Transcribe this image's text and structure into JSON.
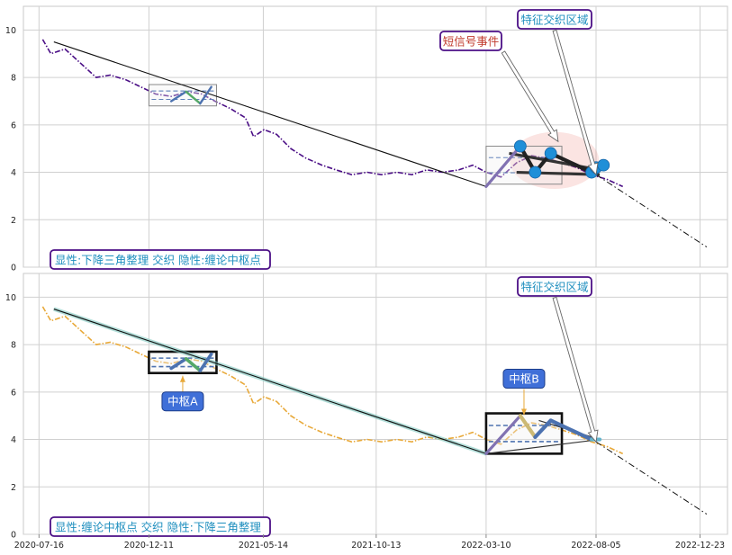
{
  "chart_data": [
    {
      "type": "line",
      "panel": "top",
      "ylim": [
        0,
        11
      ],
      "yticks": [
        "0",
        "2",
        "4",
        "6",
        "8",
        "10"
      ],
      "grid": true,
      "series": [
        {
          "style": "dash-dot",
          "color": "#4b0f86",
          "points": [
            [
              "2020-07-21",
              9.6
            ],
            [
              "2020-08-01",
              9.0
            ],
            [
              "2020-08-20",
              9.2
            ],
            [
              "2020-09-10",
              8.6
            ],
            [
              "2020-10-01",
              8.0
            ],
            [
              "2020-10-20",
              8.1
            ],
            [
              "2020-11-10",
              7.9
            ],
            [
              "2020-11-30",
              7.6
            ],
            [
              "2020-12-20",
              7.3
            ],
            [
              "2021-01-10",
              7.2
            ],
            [
              "2021-02-01",
              7.4
            ],
            [
              "2021-02-20",
              7.3
            ],
            [
              "2021-03-10",
              7.0
            ],
            [
              "2021-03-30",
              6.7
            ],
            [
              "2021-04-20",
              6.3
            ],
            [
              "2021-05-01",
              5.5
            ],
            [
              "2021-05-15",
              5.8
            ],
            [
              "2021-06-01",
              5.6
            ],
            [
              "2021-06-20",
              5.0
            ],
            [
              "2021-07-10",
              4.6
            ],
            [
              "2021-08-01",
              4.3
            ],
            [
              "2021-08-20",
              4.1
            ],
            [
              "2021-09-10",
              3.9
            ],
            [
              "2021-10-01",
              4.0
            ],
            [
              "2021-10-20",
              3.9
            ],
            [
              "2021-11-10",
              4.0
            ],
            [
              "2021-11-30",
              3.9
            ],
            [
              "2021-12-20",
              4.1
            ],
            [
              "2022-01-10",
              4.0
            ],
            [
              "2022-02-01",
              4.1
            ],
            [
              "2022-02-20",
              4.3
            ],
            [
              "2022-03-10",
              4.0
            ],
            [
              "2022-03-30",
              3.8
            ],
            [
              "2022-04-20",
              4.4
            ],
            [
              "2022-05-10",
              4.7
            ],
            [
              "2022-05-30",
              4.6
            ],
            [
              "2022-06-20",
              4.4
            ],
            [
              "2022-07-10",
              4.2
            ],
            [
              "2022-07-30",
              3.9
            ],
            [
              "2022-08-20",
              3.7
            ],
            [
              "2022-09-10",
              3.4
            ]
          ]
        }
      ],
      "trendline": {
        "style": "solid",
        "points": [
          [
            "2020-08-05",
            9.5
          ],
          [
            "2022-03-10",
            3.4
          ]
        ]
      },
      "projection": {
        "style": "dash-dot",
        "points": [
          [
            "2022-08-05",
            3.9
          ],
          [
            "2023-01-01",
            0.85
          ]
        ]
      },
      "triangle_upper": [
        [
          "2022-04-10",
          4.8
        ],
        [
          "2022-08-10",
          4.1
        ]
      ],
      "triangle_lower": [
        [
          "2022-04-20",
          4.0
        ],
        [
          "2022-08-10",
          3.9
        ]
      ],
      "zhongshu_boxes": [
        {
          "x": [
            "2020-12-11",
            "2021-03-12"
          ],
          "y": [
            6.8,
            7.7
          ]
        },
        {
          "x": [
            "2022-03-10",
            "2022-06-20"
          ],
          "y": [
            3.5,
            5.1
          ]
        }
      ],
      "zigzag_colors": [
        "#4c72b0",
        "#55a868",
        "#4c72b0",
        "#c44e52"
      ],
      "zigzag": [
        [
          "2021-01-10",
          7.0
        ],
        [
          "2021-01-30",
          7.4
        ],
        [
          "2021-02-18",
          6.9
        ],
        [
          "2021-03-05",
          7.6
        ]
      ],
      "wave": [
        [
          "2022-03-10",
          3.4
        ],
        [
          "2022-04-25",
          5.1
        ],
        [
          "2022-05-15",
          4.0
        ],
        [
          "2022-06-05",
          4.8
        ],
        [
          "2022-07-30",
          4.0
        ],
        [
          "2022-08-10",
          4.2
        ]
      ],
      "markers": [
        [
          "2022-04-25",
          5.1
        ],
        [
          "2022-05-15",
          4.0
        ],
        [
          "2022-06-05",
          4.8
        ],
        [
          "2022-07-30",
          4.0
        ],
        [
          "2022-08-05",
          4.2
        ],
        [
          "2022-08-15",
          4.3
        ]
      ],
      "highlight_ellipse": {
        "center": [
          "2022-06-10",
          4.5
        ],
        "half_width_days": 60,
        "half_height": 1.2
      },
      "annotations": [
        {
          "text": "短信号事件",
          "target": [
            "2022-06-15",
            5.3
          ],
          "color": "#c0392b"
        },
        {
          "text": "特征交织区域",
          "target": [
            "2022-08-05",
            3.9
          ],
          "color": "#1f8fbf"
        }
      ],
      "legend_text": "显性:下降三角整理 交织 隐性:缠论中枢点"
    },
    {
      "type": "line",
      "panel": "bottom",
      "ylim": [
        0,
        11
      ],
      "yticks": [
        "0",
        "2",
        "4",
        "6",
        "8",
        "10"
      ],
      "xticks": [
        "2020-07-16",
        "2020-12-11",
        "2021-05-14",
        "2021-10-13",
        "2022-03-10",
        "2022-08-05",
        "2022-12-23"
      ],
      "grid": true,
      "series": [
        {
          "style": "dash-dot",
          "color": "#e8a93a",
          "points": [
            [
              "2020-07-21",
              9.6
            ],
            [
              "2020-08-01",
              9.0
            ],
            [
              "2020-08-20",
              9.2
            ],
            [
              "2020-09-10",
              8.6
            ],
            [
              "2020-10-01",
              8.0
            ],
            [
              "2020-10-20",
              8.1
            ],
            [
              "2020-11-10",
              7.9
            ],
            [
              "2020-11-30",
              7.6
            ],
            [
              "2020-12-20",
              7.3
            ],
            [
              "2021-01-10",
              7.2
            ],
            [
              "2021-02-01",
              7.4
            ],
            [
              "2021-02-20",
              7.3
            ],
            [
              "2021-03-10",
              7.0
            ],
            [
              "2021-03-30",
              6.7
            ],
            [
              "2021-04-20",
              6.3
            ],
            [
              "2021-05-01",
              5.5
            ],
            [
              "2021-05-15",
              5.8
            ],
            [
              "2021-06-01",
              5.6
            ],
            [
              "2021-06-20",
              5.0
            ],
            [
              "2021-07-10",
              4.6
            ],
            [
              "2021-08-01",
              4.3
            ],
            [
              "2021-08-20",
              4.1
            ],
            [
              "2021-09-10",
              3.9
            ],
            [
              "2021-10-01",
              4.0
            ],
            [
              "2021-10-20",
              3.9
            ],
            [
              "2021-11-10",
              4.0
            ],
            [
              "2021-11-30",
              3.9
            ],
            [
              "2021-12-20",
              4.1
            ],
            [
              "2022-01-10",
              4.0
            ],
            [
              "2022-02-01",
              4.1
            ],
            [
              "2022-02-20",
              4.3
            ],
            [
              "2022-03-10",
              4.0
            ],
            [
              "2022-03-30",
              3.8
            ],
            [
              "2022-04-20",
              4.4
            ],
            [
              "2022-05-10",
              4.7
            ],
            [
              "2022-05-30",
              4.6
            ],
            [
              "2022-06-20",
              4.4
            ],
            [
              "2022-07-10",
              4.2
            ],
            [
              "2022-07-30",
              3.9
            ],
            [
              "2022-08-20",
              3.7
            ],
            [
              "2022-09-10",
              3.4
            ]
          ]
        }
      ],
      "trendline": {
        "style": "solid",
        "points": [
          [
            "2020-08-05",
            9.5
          ],
          [
            "2022-03-10",
            3.4
          ]
        ]
      },
      "projection": {
        "style": "dash-dot",
        "points": [
          [
            "2022-08-05",
            3.9
          ],
          [
            "2023-01-01",
            0.85
          ]
        ]
      },
      "triangle_upper": [
        [
          "2022-05-20",
          4.8
        ],
        [
          "2022-08-10",
          4.0
        ]
      ],
      "triangle_lower": [
        [
          "2022-03-10",
          3.4
        ],
        [
          "2022-08-10",
          4.0
        ]
      ],
      "zhongshu_boxes": [
        {
          "x": [
            "2020-12-11",
            "2021-03-12"
          ],
          "y": [
            6.8,
            7.7
          ],
          "label": "中枢A"
        },
        {
          "x": [
            "2022-03-10",
            "2022-06-20"
          ],
          "y": [
            3.4,
            5.1
          ],
          "label": "中枢B"
        }
      ],
      "zigzag_colors": [
        "#4c72b0",
        "#55a868",
        "#4c72b0",
        "#c44e52"
      ],
      "zigzag": [
        [
          "2021-01-10",
          7.0
        ],
        [
          "2021-01-30",
          7.4
        ],
        [
          "2021-02-18",
          6.9
        ],
        [
          "2021-03-05",
          7.6
        ]
      ],
      "wave": [
        [
          "2022-03-10",
          3.4
        ],
        [
          "2022-04-25",
          5.0
        ],
        [
          "2022-05-15",
          4.1
        ],
        [
          "2022-06-05",
          4.8
        ],
        [
          "2022-07-30",
          4.0
        ],
        [
          "2022-08-10",
          4.0
        ]
      ],
      "annotations": [
        {
          "text": "特征交织区域",
          "target": [
            "2022-08-05",
            3.9
          ],
          "color": "#1f8fbf"
        }
      ],
      "legend_text": "显性:缠论中枢点 交织 隐性:下降三角整理"
    }
  ]
}
